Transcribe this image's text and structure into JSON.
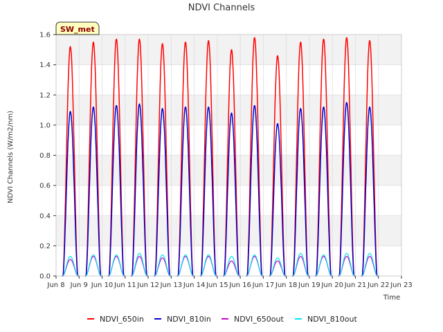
{
  "chart_data": {
    "type": "line",
    "title": "NDVI Channels",
    "xlabel": "Time",
    "ylabel": "NDVI Channels (W/m2/nm)",
    "badge": "SW_met",
    "xlim": [
      8,
      23
    ],
    "ylim": [
      0,
      1.6
    ],
    "x_ticks": [
      8,
      9,
      10,
      11,
      12,
      13,
      14,
      15,
      16,
      17,
      18,
      19,
      20,
      21,
      22,
      23
    ],
    "x_tick_labels": [
      "Jun 8",
      "Jun 9",
      "Jun 10",
      "Jun 11",
      "Jun 12",
      "Jun 13",
      "Jun 14",
      "Jun 15",
      "Jun 16",
      "Jun 17",
      "Jun 18",
      "Jun 19",
      "Jun 20",
      "Jun 21",
      "Jun 22",
      "Jun 23"
    ],
    "y_ticks": [
      0.0,
      0.2,
      0.4,
      0.6,
      0.8,
      1.0,
      1.2,
      1.4,
      1.6
    ],
    "y_tick_labels": [
      "0.0",
      "0.2",
      "0.4",
      "0.6",
      "0.8",
      "1.0",
      "1.2",
      "1.4",
      "1.6"
    ],
    "grid": true,
    "legend_position": "bottom",
    "daily_peak_x": [
      8.62,
      9.62,
      10.62,
      11.62,
      12.62,
      13.62,
      14.62,
      15.62,
      16.62,
      17.62,
      18.62,
      19.62,
      20.62,
      21.62
    ],
    "series": [
      {
        "name": "NDVI_650in",
        "color": "#ff0000",
        "width": 1.5,
        "peaks": [
          1.52,
          1.55,
          1.57,
          1.57,
          1.54,
          1.55,
          1.56,
          1.5,
          1.58,
          1.46,
          1.55,
          1.57,
          1.58,
          1.56
        ]
      },
      {
        "name": "NDVI_810in",
        "color": "#0000cc",
        "width": 1.5,
        "peaks": [
          1.09,
          1.12,
          1.13,
          1.14,
          1.11,
          1.12,
          1.12,
          1.08,
          1.13,
          1.01,
          1.11,
          1.12,
          1.15,
          1.12
        ]
      },
      {
        "name": "NDVI_650out",
        "color": "#cc00cc",
        "width": 1.2,
        "peaks": [
          0.11,
          0.13,
          0.13,
          0.13,
          0.12,
          0.13,
          0.13,
          0.1,
          0.13,
          0.1,
          0.13,
          0.13,
          0.13,
          0.13
        ]
      },
      {
        "name": "NDVI_810out",
        "color": "#00e5ee",
        "width": 1.2,
        "peaks": [
          0.13,
          0.14,
          0.14,
          0.15,
          0.14,
          0.14,
          0.14,
          0.13,
          0.14,
          0.12,
          0.15,
          0.14,
          0.15,
          0.15
        ]
      }
    ]
  }
}
